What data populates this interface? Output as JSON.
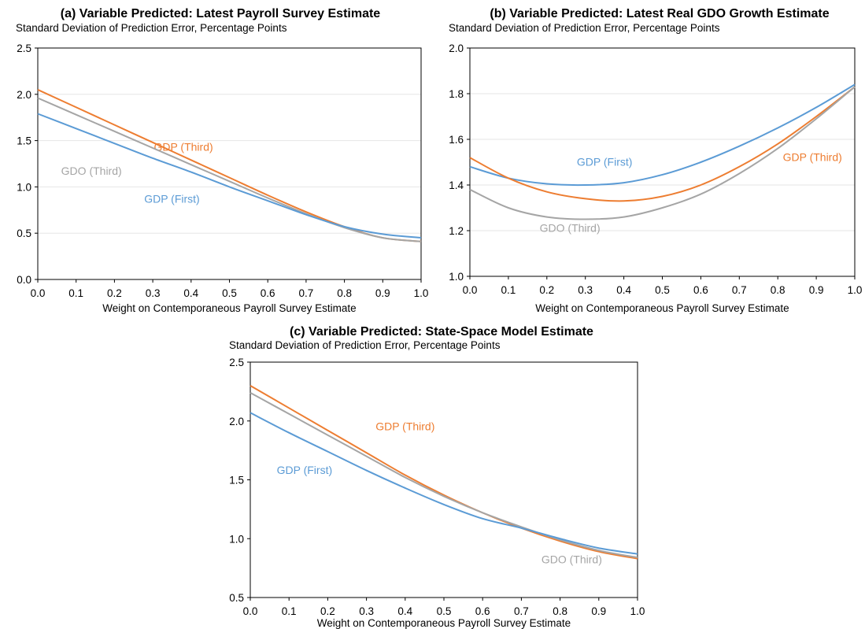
{
  "chart_data": [
    {
      "id": "a",
      "type": "line",
      "title": "(a) Variable Predicted: Latest Payroll Survey Estimate",
      "ylabel": "Standard Deviation of Prediction Error, Percentage Points",
      "xlabel": "Weight on Contemporaneous Payroll Survey Estimate",
      "xlim": [
        0,
        1
      ],
      "ylim": [
        0,
        2.5
      ],
      "xticks": [
        "0.0",
        "0.1",
        "0.2",
        "0.3",
        "0.4",
        "0.5",
        "0.6",
        "0.7",
        "0.8",
        "0.9",
        "1.0"
      ],
      "yticks": [
        "0.0",
        "0.5",
        "1.0",
        "1.5",
        "2.0",
        "2.5"
      ],
      "grid": true,
      "x": [
        0.0,
        0.1,
        0.2,
        0.3,
        0.4,
        0.5,
        0.6,
        0.7,
        0.8,
        0.9,
        1.0
      ],
      "series": [
        {
          "name": "GDP (Third)",
          "color": "#ED7D31",
          "values": [
            2.05,
            1.86,
            1.67,
            1.48,
            1.29,
            1.1,
            0.91,
            0.73,
            0.57,
            0.45,
            0.41
          ],
          "label_at": [
            0.38,
            1.39
          ]
        },
        {
          "name": "GDO (Third)",
          "color": "#A5A5A5",
          "values": [
            1.96,
            1.78,
            1.6,
            1.42,
            1.24,
            1.06,
            0.88,
            0.71,
            0.56,
            0.45,
            0.41
          ],
          "label_at": [
            0.14,
            1.13
          ]
        },
        {
          "name": "GDP (First)",
          "color": "#5B9BD5",
          "values": [
            1.79,
            1.63,
            1.47,
            1.31,
            1.16,
            1.0,
            0.85,
            0.7,
            0.57,
            0.49,
            0.45
          ],
          "label_at": [
            0.35,
            0.83
          ]
        }
      ]
    },
    {
      "id": "b",
      "type": "line",
      "title": "(b) Variable Predicted: Latest Real GDO Growth Estimate",
      "ylabel": "Standard Deviation of Prediction Error, Percentage Points",
      "xlabel": "Weight on Contemporaneous Payroll Survey Estimate",
      "xlim": [
        0,
        1
      ],
      "ylim": [
        1.0,
        2.0
      ],
      "xticks": [
        "0.0",
        "0.1",
        "0.2",
        "0.3",
        "0.4",
        "0.5",
        "0.6",
        "0.7",
        "0.8",
        "0.9",
        "1.0"
      ],
      "yticks": [
        "1.0",
        "1.2",
        "1.4",
        "1.6",
        "1.8",
        "2.0"
      ],
      "grid": true,
      "x": [
        0.0,
        0.1,
        0.2,
        0.3,
        0.4,
        0.5,
        0.6,
        0.7,
        0.8,
        0.9,
        1.0
      ],
      "series": [
        {
          "name": "GDP (First)",
          "color": "#5B9BD5",
          "values": [
            1.48,
            1.43,
            1.405,
            1.4,
            1.41,
            1.445,
            1.5,
            1.57,
            1.65,
            1.74,
            1.84
          ],
          "label_at": [
            0.35,
            1.485
          ]
        },
        {
          "name": "GDP (Third)",
          "color": "#ED7D31",
          "values": [
            1.52,
            1.43,
            1.37,
            1.34,
            1.33,
            1.35,
            1.4,
            1.48,
            1.58,
            1.7,
            1.83
          ],
          "label_at": [
            0.89,
            1.505
          ]
        },
        {
          "name": "GDO (Third)",
          "color": "#A5A5A5",
          "values": [
            1.38,
            1.3,
            1.26,
            1.25,
            1.26,
            1.3,
            1.36,
            1.45,
            1.56,
            1.69,
            1.83
          ],
          "label_at": [
            0.26,
            1.195
          ]
        }
      ]
    },
    {
      "id": "c",
      "type": "line",
      "title": "(c) Variable Predicted: State-Space Model Estimate",
      "ylabel": "Standard Deviation of Prediction Error, Percentage Points",
      "xlabel": "Weight on Contemporaneous Payroll Survey Estimate",
      "xlim": [
        0,
        1
      ],
      "ylim": [
        0.5,
        2.5
      ],
      "xticks": [
        "0.0",
        "0.1",
        "0.2",
        "0.3",
        "0.4",
        "0.5",
        "0.6",
        "0.7",
        "0.8",
        "0.9",
        "1.0"
      ],
      "yticks": [
        "0.5",
        "1.0",
        "1.5",
        "2.0",
        "2.5"
      ],
      "grid": false,
      "x": [
        0.0,
        0.1,
        0.2,
        0.3,
        0.4,
        0.5,
        0.6,
        0.7,
        0.8,
        0.9,
        1.0
      ],
      "series": [
        {
          "name": "GDP (Third)",
          "color": "#ED7D31",
          "values": [
            2.3,
            2.11,
            1.92,
            1.73,
            1.54,
            1.37,
            1.22,
            1.09,
            0.98,
            0.89,
            0.83
          ],
          "label_at": [
            0.4,
            1.92
          ]
        },
        {
          "name": "GDO (Third)",
          "color": "#A5A5A5",
          "values": [
            2.24,
            2.06,
            1.88,
            1.7,
            1.52,
            1.36,
            1.22,
            1.1,
            0.99,
            0.9,
            0.84
          ],
          "label_at": [
            0.83,
            0.79
          ]
        },
        {
          "name": "GDP (First)",
          "color": "#5B9BD5",
          "values": [
            2.07,
            1.9,
            1.74,
            1.58,
            1.43,
            1.29,
            1.17,
            1.09,
            1.0,
            0.92,
            0.87
          ],
          "label_at": [
            0.14,
            1.55
          ]
        }
      ]
    }
  ]
}
